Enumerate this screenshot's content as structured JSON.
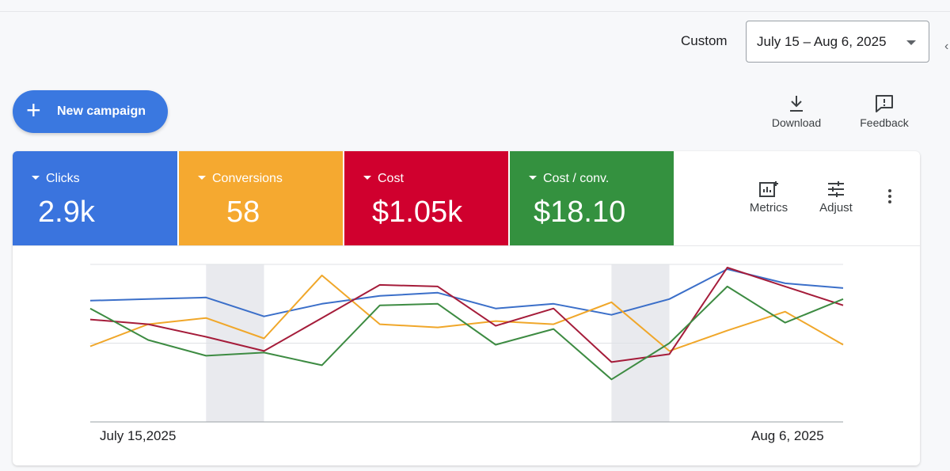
{
  "toolbar": {
    "custom_label": "Custom",
    "date_range": "July 15 – Aug 6, 2025",
    "new_campaign_label": "New campaign",
    "download_label": "Download",
    "feedback_label": "Feedback"
  },
  "metrics": {
    "tiles": [
      {
        "name": "Clicks",
        "value": "2.9k",
        "color": "#3a74de"
      },
      {
        "name": "Conversions",
        "value": "58",
        "color": "#f5a930"
      },
      {
        "name": "Cost",
        "value": "$1.05k",
        "color": "#d0002e"
      },
      {
        "name": "Cost / conv.",
        "value": "$18.10",
        "color": "#34913f"
      }
    ],
    "metrics_label": "Metrics",
    "adjust_label": "Adjust"
  },
  "chart_data": {
    "type": "line",
    "x_start_label": "July 15,2025",
    "x_end_label": "Aug 6, 2025",
    "x_count": 14,
    "ylim": [
      0,
      100
    ],
    "grid": true,
    "shaded_ranges": [
      [
        2,
        3
      ],
      [
        9,
        10
      ]
    ],
    "series": [
      {
        "color": "#3b6fc9",
        "values": [
          77,
          78,
          79,
          67,
          75,
          80,
          82,
          72,
          75,
          68,
          78,
          97,
          88,
          85
        ]
      },
      {
        "color": "#f0a72a",
        "values": [
          48,
          62,
          66,
          53,
          93,
          62,
          60,
          64,
          62,
          76,
          45,
          58,
          70,
          49
        ]
      },
      {
        "color": "#a51c3a",
        "values": [
          65,
          62,
          54,
          45,
          66,
          87,
          86,
          61,
          72,
          38,
          43,
          98,
          86,
          74
        ]
      },
      {
        "color": "#3d8b42",
        "values": [
          72,
          52,
          42,
          44,
          36,
          74,
          75,
          49,
          59,
          27,
          50,
          86,
          63,
          78
        ]
      }
    ]
  }
}
